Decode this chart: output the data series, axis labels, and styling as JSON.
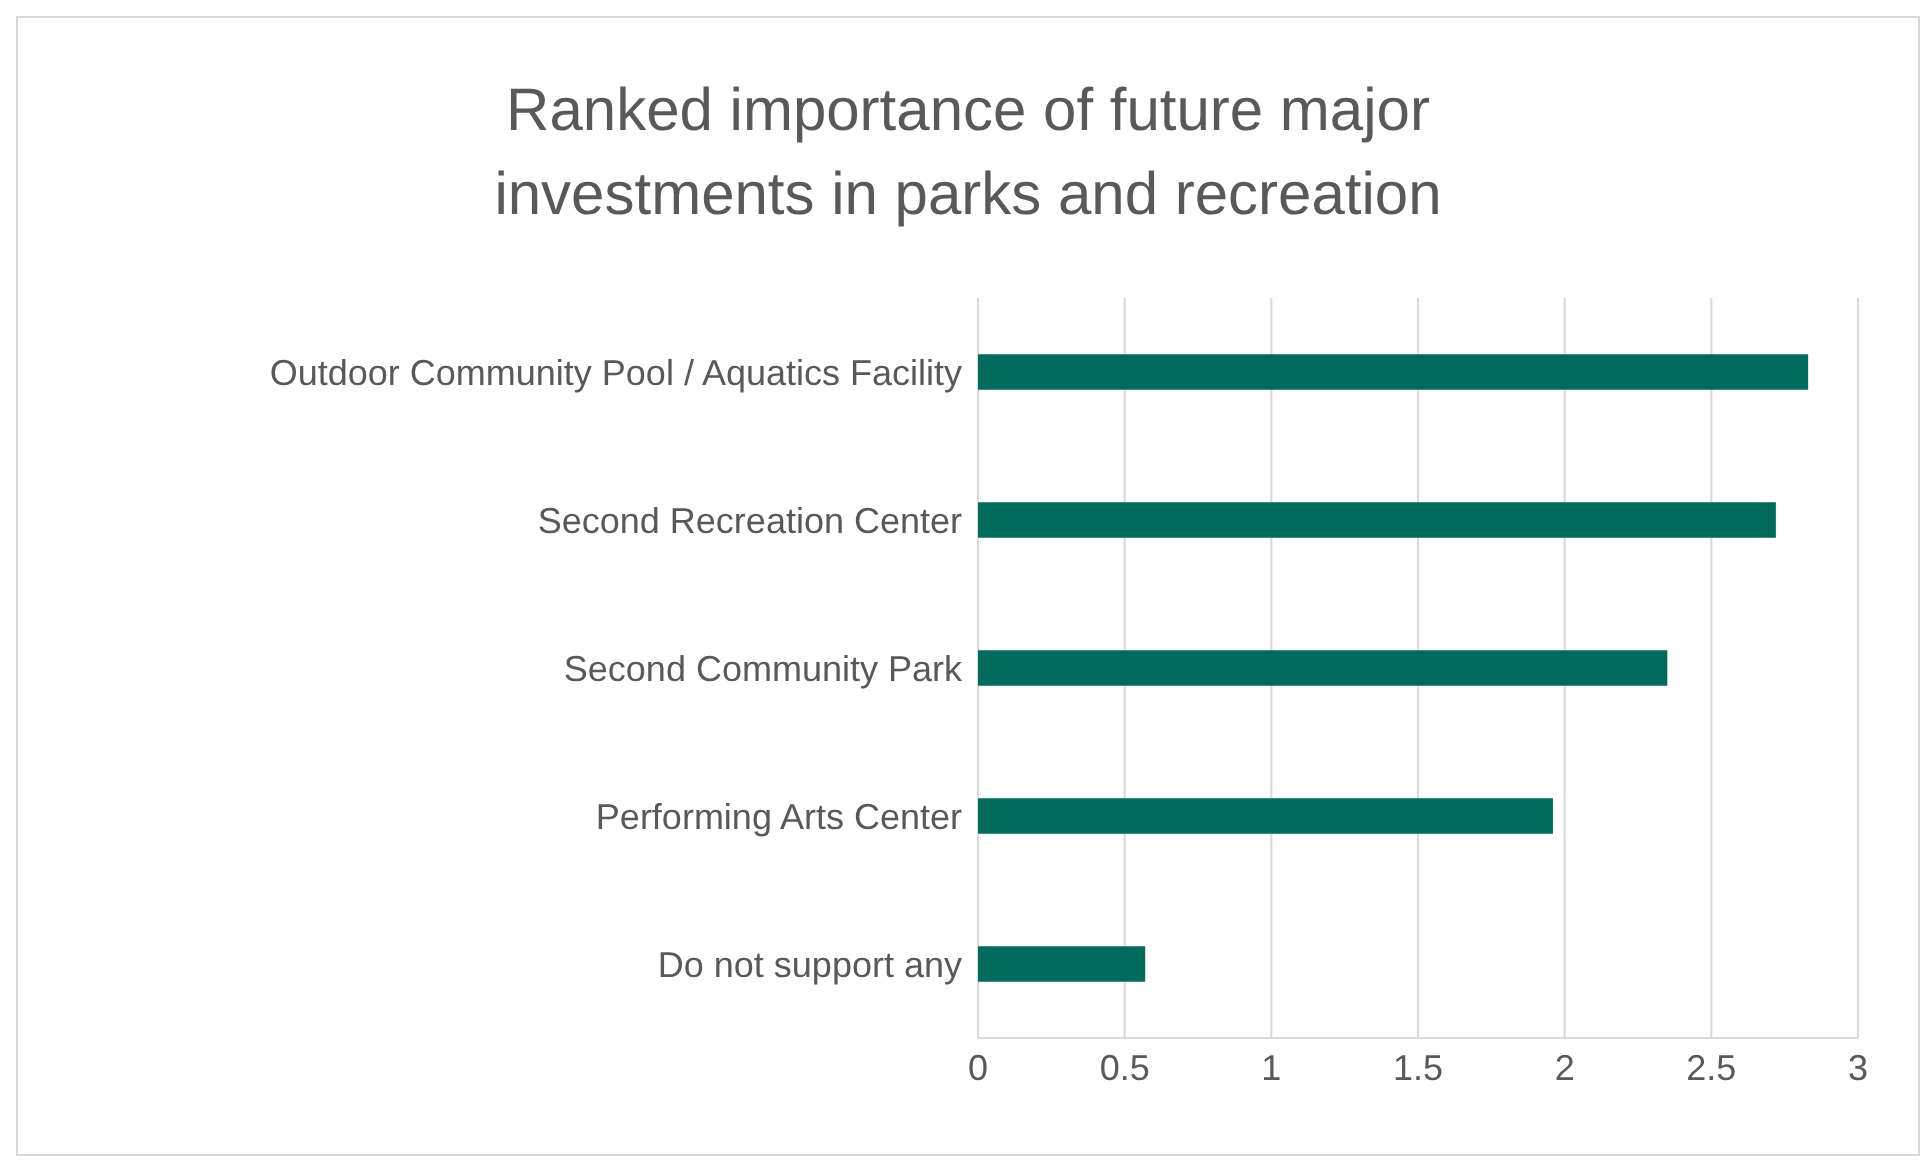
{
  "chart_data": {
    "type": "bar",
    "orientation": "horizontal",
    "title": "Ranked importance of future major investments in parks and recreation",
    "categories": [
      "Outdoor Community Pool / Aquatics Facility",
      "Second Recreation Center",
      "Second Community Park",
      "Performing Arts Center",
      "Do not support any"
    ],
    "values": [
      2.83,
      2.72,
      2.35,
      1.96,
      0.57
    ],
    "color": "#006b5a",
    "xlim": [
      0,
      3
    ],
    "xticks": [
      0,
      0.5,
      1,
      1.5,
      2,
      2.5,
      3
    ],
    "grid": "x",
    "legend": false
  }
}
